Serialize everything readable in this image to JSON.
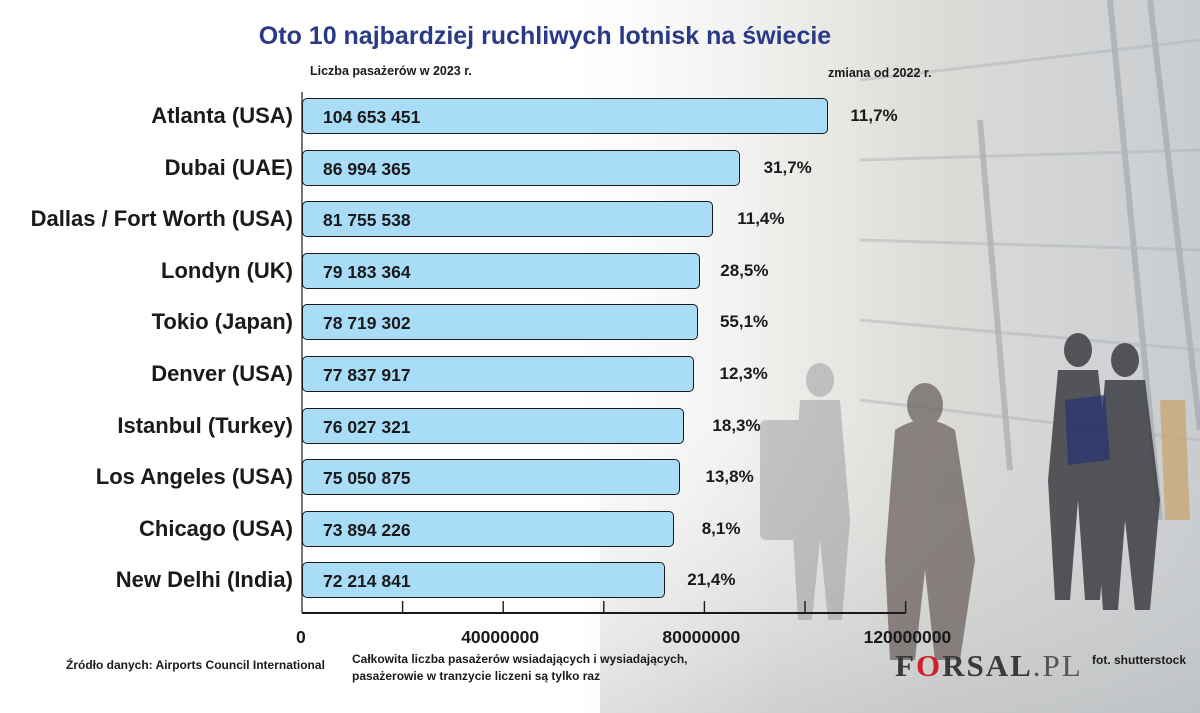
{
  "title": "Oto 10 najbardziej ruchliwych lotnisk na świecie",
  "left_axis_caption": "Liczba pasażerów w 2023 r.",
  "right_caption": "zmiana od 2022 r.",
  "source": "Źródło danych: Airports Council International",
  "footnote_line1": "Całkowita liczba pasażerów wsiadających i wysiadających,",
  "footnote_line2": "pasażerowie w tranzycie liczeni są tylko raz",
  "photo_credit": "fot. shutterstock",
  "logo": {
    "part1": "F",
    "mark": "O",
    "part2": "RSAL",
    "suffix": ".PL"
  },
  "colors": {
    "bar_fill": "#a9dcf6",
    "title": "#2b3a87",
    "logo_accent": "#d21f2b"
  },
  "chart_data": {
    "type": "bar",
    "orientation": "horizontal",
    "title": "Oto 10 najbardziej ruchliwych lotnisk na świecie",
    "xlabel": "Liczba pasażerów w 2023 r.",
    "categories": [
      "Atlanta (USA)",
      "Dubai (UAE)",
      "Dallas / Fort Worth (USA)",
      "Londyn (UK)",
      "Tokio (Japan)",
      "Denver (USA)",
      "Istanbul (Turkey)",
      "Los Angeles (USA)",
      "Chicago (USA)",
      "New Delhi (India)"
    ],
    "values": [
      104653451,
      86994365,
      81755538,
      79183364,
      78719302,
      77837917,
      76027321,
      75050875,
      73894226,
      72214841
    ],
    "value_labels": [
      "104 653 451",
      "86 994 365",
      "81 755 538",
      "79 183 364",
      "78 719 302",
      "77 837 917",
      "76 027 321",
      "75 050 875",
      "73 894 226",
      "72 214 841"
    ],
    "change_labels": [
      "11,7%",
      "31,7%",
      "11,4%",
      "28,5%",
      "55,1%",
      "12,3%",
      "18,3%",
      "13,8%",
      "8,1%",
      "21,4%"
    ],
    "xlim": [
      0,
      120000000
    ],
    "x_ticks": [
      0,
      40000000,
      80000000,
      120000000
    ],
    "x_tick_labels": [
      "0",
      "40000000",
      "80000000",
      "120000000"
    ],
    "grid": false,
    "legend": "none"
  }
}
